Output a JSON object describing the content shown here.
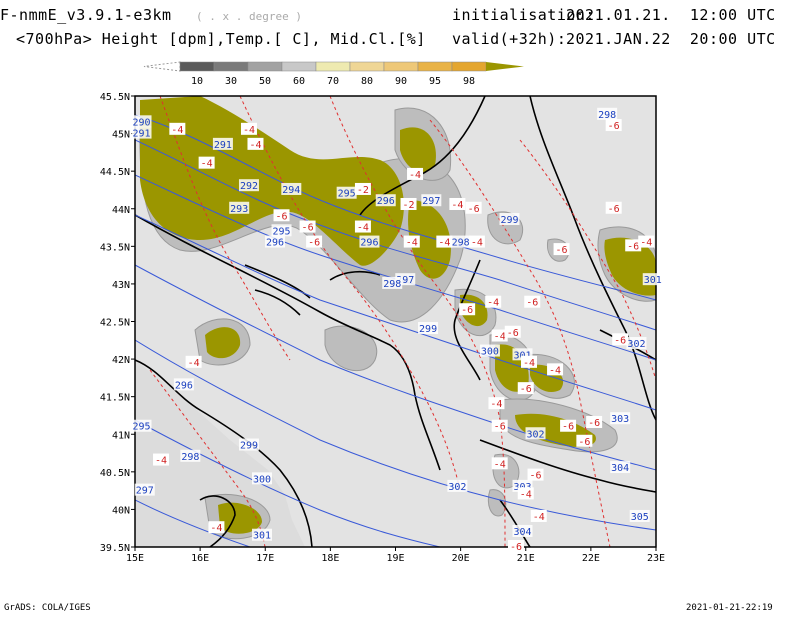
{
  "header": {
    "model_title": "F-nmmE_v3.9.1-e3km",
    "resolution_note": "( . x . degree )",
    "init_label": "initialisation:",
    "init_time": "2021.01.21.  12:00 UTC",
    "fields": "<700hPa> Height [dpm],Temp.[ C], Mid.Cl.[%]",
    "valid_label": "valid(+32h):",
    "valid_time": "2021.JAN.22  20:00 UTC"
  },
  "colorbar": {
    "labels": [
      "10",
      "30",
      "50",
      "60",
      "70",
      "80",
      "90",
      "95",
      "98"
    ],
    "colors": [
      "#5a5a5a",
      "#7a7a7a",
      "#a2a2a2",
      "#c8c8c8",
      "#eeeab0",
      "#efd695",
      "#eec878",
      "#e9b347",
      "#e4a62f",
      "#9b9600"
    ]
  },
  "map": {
    "lat_labels": [
      "45.5N",
      "45N",
      "44.5N",
      "44N",
      "43.5N",
      "43N",
      "42.5N",
      "42N",
      "41.5N",
      "41N",
      "40.5N",
      "40N",
      "39.5N"
    ],
    "lon_labels": [
      "15E",
      "16E",
      "17E",
      "18E",
      "19E",
      "20E",
      "21E",
      "22E",
      "23E"
    ],
    "height_labels": [
      {
        "t": "291",
        "lon": 16.35,
        "lat": 44.85
      },
      {
        "t": "292",
        "lon": 16.75,
        "lat": 44.3
      },
      {
        "t": "293",
        "lon": 16.6,
        "lat": 44.0
      },
      {
        "t": "294",
        "lon": 17.4,
        "lat": 44.25
      },
      {
        "t": "295",
        "lon": 18.25,
        "lat": 44.2
      },
      {
        "t": "296",
        "lon": 18.85,
        "lat": 44.1
      },
      {
        "t": "295",
        "lon": 17.25,
        "lat": 43.7
      },
      {
        "t": "296",
        "lon": 17.15,
        "lat": 43.55
      },
      {
        "t": "296",
        "lon": 18.6,
        "lat": 43.55
      },
      {
        "t": "297",
        "lon": 19.15,
        "lat": 43.05
      },
      {
        "t": "298",
        "lon": 18.95,
        "lat": 43.0
      },
      {
        "t": "298",
        "lon": 20.0,
        "lat": 43.55
      },
      {
        "t": "299",
        "lon": 20.75,
        "lat": 43.85
      },
      {
        "t": "299",
        "lon": 19.5,
        "lat": 42.4
      },
      {
        "t": "300",
        "lon": 20.45,
        "lat": 42.1
      },
      {
        "t": "301",
        "lon": 20.95,
        "lat": 42.05
      },
      {
        "t": "296",
        "lon": 15.75,
        "lat": 41.65
      },
      {
        "t": "295",
        "lon": 15.1,
        "lat": 41.1
      },
      {
        "t": "297",
        "lon": 15.15,
        "lat": 40.25
      },
      {
        "t": "298",
        "lon": 15.85,
        "lat": 40.7
      },
      {
        "t": "299",
        "lon": 16.75,
        "lat": 40.85
      },
      {
        "t": "300",
        "lon": 16.95,
        "lat": 40.4
      },
      {
        "t": "301",
        "lon": 16.95,
        "lat": 39.65
      },
      {
        "t": "302",
        "lon": 21.15,
        "lat": 41.0
      },
      {
        "t": "302",
        "lon": 19.95,
        "lat": 40.3
      },
      {
        "t": "303",
        "lon": 20.95,
        "lat": 40.3
      },
      {
        "t": "303",
        "lon": 22.45,
        "lat": 41.2
      },
      {
        "t": "304",
        "lon": 22.45,
        "lat": 40.55
      },
      {
        "t": "304",
        "lon": 20.95,
        "lat": 39.7
      },
      {
        "t": "305",
        "lon": 22.75,
        "lat": 39.9
      },
      {
        "t": "298",
        "lon": 22.25,
        "lat": 45.25
      },
      {
        "t": "301",
        "lon": 22.95,
        "lat": 43.05
      },
      {
        "t": "302",
        "lon": 22.7,
        "lat": 42.2
      },
      {
        "t": "291",
        "lon": 15.1,
        "lat": 45.0
      },
      {
        "t": "290",
        "lon": 15.1,
        "lat": 45.15
      },
      {
        "t": "297",
        "lon": 19.55,
        "lat": 44.1
      }
    ],
    "temp_labels": [
      {
        "t": "-4",
        "lon": 15.65,
        "lat": 45.05
      },
      {
        "t": "-4",
        "lon": 16.75,
        "lat": 45.05
      },
      {
        "t": "-4",
        "lon": 16.85,
        "lat": 44.85
      },
      {
        "t": "-2",
        "lon": 18.5,
        "lat": 44.25
      },
      {
        "t": "-4",
        "lon": 19.3,
        "lat": 44.45
      },
      {
        "t": "-2",
        "lon": 19.2,
        "lat": 44.05
      },
      {
        "t": "-4",
        "lon": 19.95,
        "lat": 44.05
      },
      {
        "t": "-4",
        "lon": 18.5,
        "lat": 43.75
      },
      {
        "t": "-4",
        "lon": 19.25,
        "lat": 43.55
      },
      {
        "t": "-4",
        "lon": 19.75,
        "lat": 43.55
      },
      {
        "t": "-4",
        "lon": 20.25,
        "lat": 43.55
      },
      {
        "t": "-4",
        "lon": 20.5,
        "lat": 42.75
      },
      {
        "t": "-6",
        "lon": 20.1,
        "lat": 42.65
      },
      {
        "t": "-4",
        "lon": 20.6,
        "lat": 42.3
      },
      {
        "t": "-6",
        "lon": 20.8,
        "lat": 42.35
      },
      {
        "t": "-4",
        "lon": 21.05,
        "lat": 41.95
      },
      {
        "t": "-4",
        "lon": 21.45,
        "lat": 41.85
      },
      {
        "t": "-6",
        "lon": 21.0,
        "lat": 41.6
      },
      {
        "t": "-4",
        "lon": 20.55,
        "lat": 41.4
      },
      {
        "t": "-6",
        "lon": 20.6,
        "lat": 41.1
      },
      {
        "t": "-6",
        "lon": 21.65,
        "lat": 41.1
      },
      {
        "t": "-6",
        "lon": 21.9,
        "lat": 40.9
      },
      {
        "t": "-4",
        "lon": 20.6,
        "lat": 40.6
      },
      {
        "t": "-6",
        "lon": 21.15,
        "lat": 40.45
      },
      {
        "t": "-4",
        "lon": 21.0,
        "lat": 40.2
      },
      {
        "t": "-4",
        "lon": 21.2,
        "lat": 39.9
      },
      {
        "t": "-6",
        "lon": 20.85,
        "lat": 39.5
      },
      {
        "t": "-4",
        "lon": 15.9,
        "lat": 41.95
      },
      {
        "t": "-4",
        "lon": 15.4,
        "lat": 40.65
      },
      {
        "t": "-4",
        "lon": 16.25,
        "lat": 39.75
      },
      {
        "t": "-4",
        "lon": 16.1,
        "lat": 44.6
      },
      {
        "t": "-6",
        "lon": 17.25,
        "lat": 43.9
      },
      {
        "t": "-6",
        "lon": 17.75,
        "lat": 43.55
      },
      {
        "t": "-6",
        "lon": 17.65,
        "lat": 43.75
      },
      {
        "t": "-6",
        "lon": 22.35,
        "lat": 44.0
      },
      {
        "t": "-6",
        "lon": 22.65,
        "lat": 43.5
      },
      {
        "t": "-6",
        "lon": 21.55,
        "lat": 43.45
      },
      {
        "t": "-6",
        "lon": 21.1,
        "lat": 42.75
      },
      {
        "t": "-6",
        "lon": 22.45,
        "lat": 42.25
      },
      {
        "t": "-6",
        "lon": 20.2,
        "lat": 44.0
      },
      {
        "t": "-6",
        "lon": 22.05,
        "lat": 41.15
      },
      {
        "t": "-6",
        "lon": 22.35,
        "lat": 45.1
      },
      {
        "t": "-4",
        "lon": 22.85,
        "lat": 43.55
      }
    ]
  },
  "footer": {
    "left": "GrADS: COLA/IGES",
    "right": "2021-01-21-22:19"
  }
}
